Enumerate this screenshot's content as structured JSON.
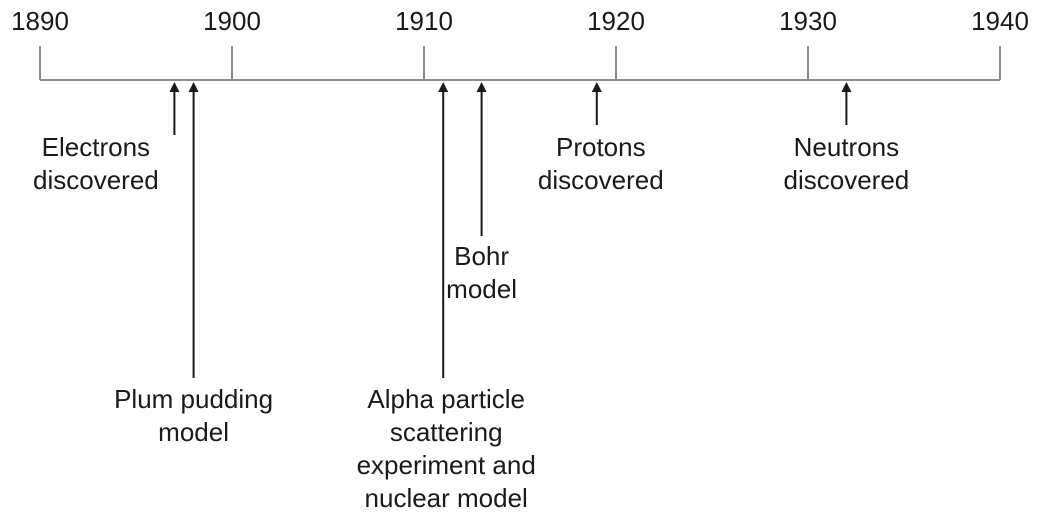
{
  "timeline": {
    "start_year": 1890,
    "end_year": 1940,
    "ticks": [
      {
        "year": 1890,
        "label": "1890"
      },
      {
        "year": 1900,
        "label": "1900"
      },
      {
        "year": 1910,
        "label": "1910"
      },
      {
        "year": 1920,
        "label": "1920"
      },
      {
        "year": 1930,
        "label": "1930"
      },
      {
        "year": 1940,
        "label": "1940"
      }
    ],
    "events": [
      {
        "id": "electrons",
        "year": 1897,
        "lines": [
          "Electrons",
          "discovered"
        ]
      },
      {
        "id": "plum-pudding",
        "year": 1898,
        "lines": [
          "Plum pudding",
          "model"
        ]
      },
      {
        "id": "alpha-particle",
        "year": 1911,
        "lines": [
          "Alpha particle",
          "scattering",
          "experiment and",
          "nuclear model"
        ]
      },
      {
        "id": "bohr",
        "year": 1913,
        "lines": [
          "Bohr",
          "model"
        ]
      },
      {
        "id": "protons",
        "year": 1919,
        "lines": [
          "Protons",
          "discovered"
        ]
      },
      {
        "id": "neutrons",
        "year": 1932,
        "lines": [
          "Neutrons",
          "discovered"
        ]
      }
    ],
    "line_color": "#8c8c8c",
    "arrow_color": "#1a1a1a"
  }
}
